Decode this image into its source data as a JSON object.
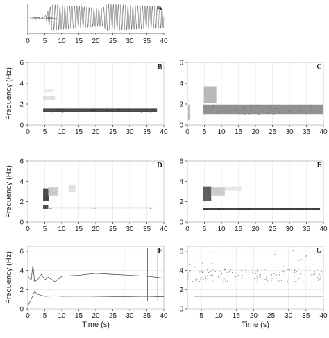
{
  "figure": {
    "shared_ylabel": "Frequency (Hz)",
    "shared_xlabel": "Time (s)",
    "inset_trace_text": "--Spol--r--Spos---"
  },
  "chart_data": [
    {
      "id": "A",
      "label": "A",
      "type": "line",
      "description_free": true,
      "x": [
        0,
        5,
        7,
        10,
        15,
        20,
        22,
        23,
        25,
        30,
        35,
        40
      ],
      "y_envelope": [
        0.0,
        0.05,
        1.0,
        0.95,
        0.85,
        0.72,
        0.7,
        1.0,
        1.0,
        0.95,
        0.9,
        0.85
      ],
      "oscillation_freq_hz": 1.4,
      "xticks": [
        0,
        5,
        10,
        15,
        20,
        25,
        30,
        35,
        40
      ],
      "xlim": [
        0,
        40
      ],
      "ylim": [
        -1,
        1
      ],
      "grid": false
    },
    {
      "id": "B",
      "label": "B",
      "type": "heatmap",
      "xticks": [
        0,
        5,
        10,
        15,
        20,
        25,
        30,
        35,
        40
      ],
      "yticks": [
        0,
        2,
        4,
        6
      ],
      "xlim": [
        0,
        40
      ],
      "ylim": [
        0,
        6
      ],
      "ylabel": "Frequency (Hz)",
      "bands": [
        {
          "x0": 4.5,
          "x1": 38,
          "y": 1.4,
          "thick": 0.35,
          "intensity": 0.9
        },
        {
          "x0": 4.5,
          "x1": 8,
          "y": 2.6,
          "thick": 0.4,
          "intensity": 0.15
        },
        {
          "x0": 5,
          "x1": 7.5,
          "y": 3.3,
          "thick": 0.3,
          "intensity": 0.12
        }
      ]
    },
    {
      "id": "C",
      "label": "C",
      "type": "heatmap",
      "xticks": [
        0,
        5,
        10,
        15,
        20,
        25,
        30,
        35,
        40
      ],
      "yticks": [
        0,
        2,
        4,
        6
      ],
      "xlim": [
        0,
        40
      ],
      "ylim": [
        0,
        6
      ],
      "bands": [
        {
          "x0": 4.5,
          "x1": 40,
          "y": 1.5,
          "thick": 0.9,
          "intensity": 0.55
        },
        {
          "x0": 4.8,
          "x1": 8.5,
          "y": 2.9,
          "thick": 1.6,
          "intensity": 0.35
        },
        {
          "x0": 0.2,
          "x1": 0.8,
          "y": 1.2,
          "thick": 1.5,
          "intensity": 0.35
        }
      ]
    },
    {
      "id": "D",
      "label": "D",
      "type": "heatmap",
      "xticks": [
        0,
        5,
        10,
        15,
        20,
        25,
        30,
        35,
        40
      ],
      "yticks": [
        0,
        2,
        4,
        6
      ],
      "xlim": [
        0,
        40
      ],
      "ylim": [
        0,
        6
      ],
      "ylabel": "Frequency (Hz)",
      "bands": [
        {
          "x0": 4.5,
          "x1": 6.2,
          "y": 2.7,
          "thick": 1.2,
          "intensity": 0.9
        },
        {
          "x0": 4.5,
          "x1": 6,
          "y": 1.5,
          "thick": 0.4,
          "intensity": 0.9
        },
        {
          "x0": 6,
          "x1": 37,
          "y": 1.4,
          "thick": 0.08,
          "intensity": 0.7
        },
        {
          "x0": 6,
          "x1": 9,
          "y": 3.0,
          "thick": 0.8,
          "intensity": 0.25
        },
        {
          "x0": 12,
          "x1": 14,
          "y": 3.3,
          "thick": 0.6,
          "intensity": 0.15
        }
      ]
    },
    {
      "id": "E",
      "label": "E",
      "type": "heatmap",
      "xticks": [
        0,
        5,
        10,
        15,
        20,
        25,
        30,
        35,
        40
      ],
      "yticks": [
        0,
        2,
        4,
        6
      ],
      "xlim": [
        0,
        40
      ],
      "ylim": [
        0,
        6
      ],
      "bands": [
        {
          "x0": 4.5,
          "x1": 7,
          "y": 2.8,
          "thick": 1.4,
          "intensity": 0.8
        },
        {
          "x0": 4.5,
          "x1": 39,
          "y": 1.3,
          "thick": 0.18,
          "intensity": 0.95
        },
        {
          "x0": 7,
          "x1": 11,
          "y": 3.0,
          "thick": 0.8,
          "intensity": 0.25
        },
        {
          "x0": 11,
          "x1": 16,
          "y": 3.3,
          "thick": 0.4,
          "intensity": 0.12
        }
      ]
    },
    {
      "id": "F",
      "label": "F",
      "type": "line",
      "xticks": [
        0,
        5,
        10,
        15,
        20,
        25,
        30,
        35,
        40
      ],
      "yticks": [
        0,
        2,
        4,
        6
      ],
      "xlim": [
        0,
        40
      ],
      "ylim": [
        0,
        6.5
      ],
      "ylabel": "Frequency (Hz)",
      "xlabel": "Time (s)",
      "series": [
        {
          "x": [
            0,
            1,
            1.5,
            2,
            3,
            4,
            5,
            6,
            8,
            10,
            15,
            20,
            25,
            30,
            35,
            40
          ],
          "y": [
            3.4,
            3.0,
            4.6,
            2.8,
            3.1,
            3.6,
            3.0,
            3.3,
            2.8,
            3.4,
            3.5,
            3.7,
            3.6,
            3.5,
            3.4,
            3.2
          ]
        },
        {
          "x": [
            0,
            1,
            2,
            3,
            5,
            8,
            10,
            15,
            20,
            25,
            30,
            35,
            40
          ],
          "y": [
            0.3,
            1.0,
            1.8,
            1.5,
            1.3,
            1.35,
            1.3,
            1.32,
            1.3,
            1.28,
            1.28,
            1.3,
            1.25
          ]
        }
      ],
      "spikes": [
        28.3,
        35.2,
        38.2
      ]
    },
    {
      "id": "G",
      "label": "G",
      "type": "scatter",
      "xticks": [
        5,
        10,
        15,
        20,
        25,
        30,
        35,
        40
      ],
      "yticks": [
        0,
        2,
        4,
        6
      ],
      "xlim": [
        1,
        40
      ],
      "ylim": [
        0,
        6.5
      ],
      "xlabel": "Time (s)",
      "lines": [
        {
          "x0": 3,
          "x1": 40,
          "y": 1.3
        }
      ],
      "points_band": {
        "x0": 1,
        "x1": 40,
        "y_center": 3.5,
        "spread": 0.7
      }
    }
  ]
}
